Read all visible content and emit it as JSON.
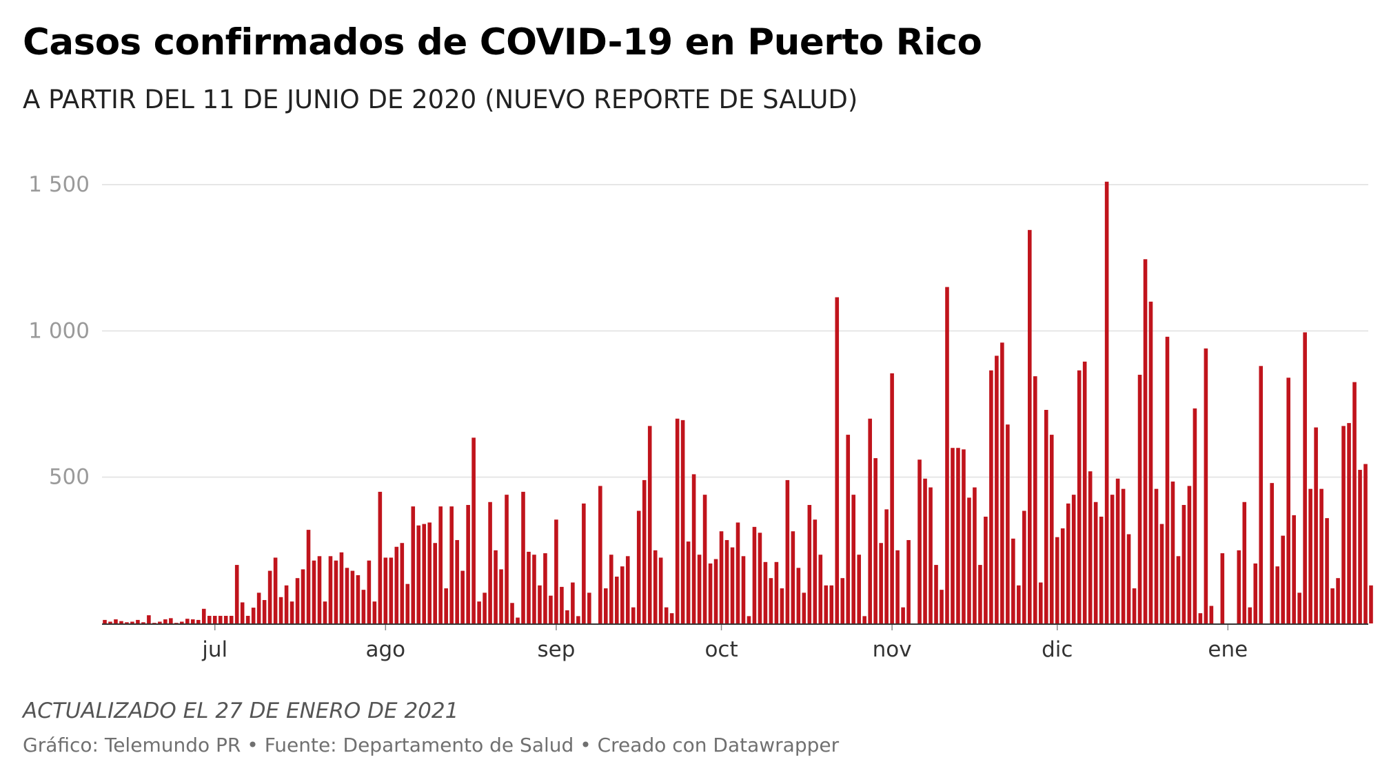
{
  "header": {
    "title": "Casos confirmados de COVID-19 en Puerto Rico",
    "subtitle": "A PARTIR DEL 11 DE JUNIO DE 2020 (NUEVO REPORTE DE SALUD)"
  },
  "footer": {
    "notes": "ACTUALIZADO EL 27 DE ENERO DE 2021",
    "credit_prefix": "Gráfico: Telemundo PR",
    "source": "Fuente: Departamento de Salud",
    "made_with": "Creado con Datawrapper"
  },
  "colors": {
    "bar": "#c0141c",
    "grid": "#e6e6e6",
    "baseline": "#333333"
  },
  "chart_data": {
    "type": "bar",
    "title": "Casos confirmados de COVID-19 en Puerto Rico",
    "x_start": "2020-06-11",
    "x_end": "2021-01-26",
    "ylim": [
      0,
      1500
    ],
    "y_ticks": [
      500,
      1000,
      1500
    ],
    "y_tick_labels": [
      "500",
      "1 000",
      "1 500"
    ],
    "months": [
      {
        "label": "jul",
        "date": "2020-07-01"
      },
      {
        "label": "ago",
        "date": "2020-08-01"
      },
      {
        "label": "sep",
        "date": "2020-09-01"
      },
      {
        "label": "oct",
        "date": "2020-10-01"
      },
      {
        "label": "nov",
        "date": "2020-11-01"
      },
      {
        "label": "dic",
        "date": "2020-12-01"
      },
      {
        "label": "ene",
        "date": "2021-01-01"
      }
    ],
    "grid": true,
    "legend": "none",
    "values": [
      12,
      6,
      14,
      8,
      4,
      6,
      12,
      4,
      28,
      2,
      6,
      14,
      18,
      2,
      6,
      16,
      14,
      12,
      50,
      26,
      26,
      26,
      26,
      26,
      200,
      72,
      26,
      54,
      105,
      80,
      180,
      225,
      90,
      130,
      75,
      155,
      185,
      320,
      215,
      230,
      75,
      230,
      215,
      243,
      190,
      180,
      165,
      115,
      215,
      75,
      450,
      225,
      225,
      262,
      275,
      135,
      400,
      335,
      340,
      345,
      275,
      400,
      120,
      400,
      285,
      180,
      405,
      635,
      75,
      105,
      415,
      250,
      185,
      440,
      70,
      20,
      450,
      245,
      235,
      130,
      240,
      95,
      355,
      125,
      45,
      140,
      25,
      410,
      105,
      0,
      470,
      120,
      235,
      160,
      195,
      230,
      55,
      385,
      490,
      675,
      250,
      225,
      55,
      35,
      700,
      695,
      280,
      510,
      235,
      440,
      205,
      220,
      315,
      285,
      260,
      345,
      230,
      25,
      330,
      310,
      210,
      155,
      210,
      120,
      490,
      315,
      190,
      105,
      405,
      355,
      235,
      130,
      130,
      1115,
      155,
      645,
      440,
      235,
      25,
      700,
      565,
      275,
      390,
      855,
      250,
      55,
      285,
      0,
      560,
      495,
      465,
      200,
      115,
      1150,
      600,
      600,
      595,
      430,
      465,
      200,
      365,
      865,
      915,
      960,
      680,
      290,
      130,
      385,
      1345,
      845,
      140,
      730,
      645,
      295,
      325,
      410,
      440,
      865,
      895,
      520,
      415,
      365,
      1510,
      440,
      495,
      460,
      305,
      120,
      850,
      1245,
      1100,
      460,
      340,
      980,
      485,
      230,
      405,
      470,
      735,
      35,
      940,
      60,
      0,
      240,
      0,
      0,
      250,
      415,
      55,
      205,
      880,
      0,
      480,
      195,
      300,
      840,
      370,
      105,
      995,
      460,
      670,
      460,
      360,
      120,
      155,
      675,
      685,
      825,
      525,
      545,
      130
    ]
  }
}
